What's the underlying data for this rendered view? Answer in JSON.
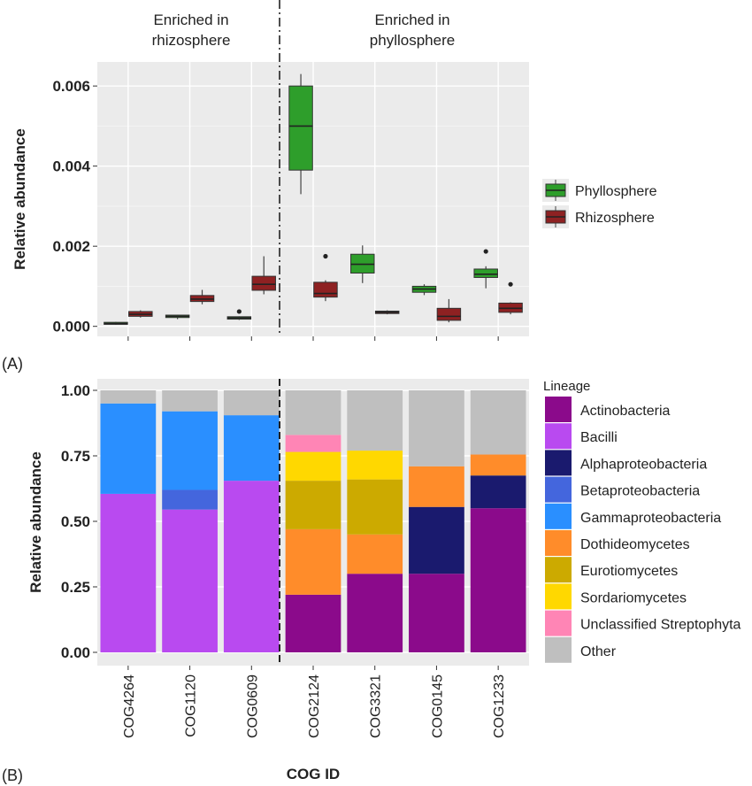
{
  "labels": {
    "panel_a": "(A)",
    "panel_b": "(B)",
    "group_left": [
      "Enriched in",
      "rhizosphere"
    ],
    "group_right": [
      "Enriched in",
      "phyllosphere"
    ]
  },
  "colors": {
    "phyllosphere": "#2e9e2b",
    "rhizosphere": "#8e2122",
    "panel_bg": "#ebebeb",
    "grid": "#ffffff"
  },
  "chart_data": [
    {
      "type": "box",
      "ylabel": "Relative abundance",
      "ylim": [
        -0.00025,
        0.0066
      ],
      "yticks": [
        "0.000",
        "0.002",
        "0.004",
        "0.006"
      ],
      "ytick_values": [
        0,
        0.002,
        0.004,
        0.006
      ],
      "categories": [
        "COG4264",
        "COG1120",
        "COG0609",
        "COG2124",
        "COG3321",
        "COG0145",
        "COG1233"
      ],
      "legend": {
        "position": "right",
        "entries": [
          "Phyllosphere",
          "Rhizosphere"
        ]
      },
      "series": [
        {
          "name": "Phyllosphere",
          "color": "#2e9e2b",
          "boxes": [
            {
              "q1": 5e-05,
              "median": 7e-05,
              "q3": 0.0001,
              "min": 4e-05,
              "max": 0.00011,
              "outliers": []
            },
            {
              "q1": 0.00022,
              "median": 0.00025,
              "q3": 0.00028,
              "min": 0.00018,
              "max": 0.00029,
              "outliers": []
            },
            {
              "q1": 0.00018,
              "median": 0.00021,
              "q3": 0.00024,
              "min": 0.00016,
              "max": 0.00025,
              "outliers": [
                0.00037
              ]
            },
            {
              "q1": 0.0039,
              "median": 0.005,
              "q3": 0.006,
              "min": 0.0033,
              "max": 0.0063,
              "outliers": []
            },
            {
              "q1": 0.00133,
              "median": 0.00155,
              "q3": 0.0018,
              "min": 0.00108,
              "max": 0.00202,
              "outliers": []
            },
            {
              "q1": 0.00085,
              "median": 0.00093,
              "q3": 0.001,
              "min": 0.00078,
              "max": 0.00105,
              "outliers": []
            },
            {
              "q1": 0.00122,
              "median": 0.0013,
              "q3": 0.00143,
              "min": 0.00095,
              "max": 0.0015,
              "outliers": [
                0.00187
              ]
            }
          ]
        },
        {
          "name": "Rhizosphere",
          "color": "#8e2122",
          "boxes": [
            {
              "q1": 0.00025,
              "median": 0.0003,
              "q3": 0.00037,
              "min": 0.00022,
              "max": 0.0004,
              "outliers": []
            },
            {
              "q1": 0.00062,
              "median": 0.00068,
              "q3": 0.00077,
              "min": 0.00055,
              "max": 0.00091,
              "outliers": []
            },
            {
              "q1": 0.0009,
              "median": 0.00105,
              "q3": 0.00125,
              "min": 0.0008,
              "max": 0.00175,
              "outliers": []
            },
            {
              "q1": 0.00073,
              "median": 0.00082,
              "q3": 0.0011,
              "min": 0.00063,
              "max": 0.00115,
              "outliers": [
                0.00175
              ]
            },
            {
              "q1": 0.00032,
              "median": 0.00035,
              "q3": 0.00038,
              "min": 0.0003,
              "max": 0.0004,
              "outliers": []
            },
            {
              "q1": 0.00015,
              "median": 0.00025,
              "q3": 0.00045,
              "min": 0.0001,
              "max": 0.00068,
              "outliers": []
            },
            {
              "q1": 0.00035,
              "median": 0.00045,
              "q3": 0.00058,
              "min": 0.0003,
              "max": 0.0006,
              "outliers": [
                0.00105
              ]
            }
          ]
        }
      ]
    },
    {
      "type": "stacked-bar",
      "ylabel": "Relative abundance",
      "xlabel": "COG ID",
      "ylim": [
        0,
        1.0
      ],
      "yticks": [
        "0.00",
        "0.25",
        "0.50",
        "0.75",
        "1.00"
      ],
      "ytick_values": [
        0,
        0.25,
        0.5,
        0.75,
        1.0
      ],
      "categories": [
        "COG4264",
        "COG1120",
        "COG0609",
        "COG2124",
        "COG3321",
        "COG0145",
        "COG1233"
      ],
      "legend": {
        "title": "Lineage",
        "position": "right"
      },
      "series": [
        {
          "name": "Actinobacteria",
          "color": "#8b0a8b",
          "values": [
            0,
            0,
            0,
            0.22,
            0.3,
            0.3,
            0.55
          ]
        },
        {
          "name": "Bacilli",
          "color": "#b94af0",
          "values": [
            0.605,
            0.545,
            0.655,
            0,
            0,
            0,
            0
          ]
        },
        {
          "name": "Alphaproteobacteria",
          "color": "#1a1a6e",
          "values": [
            0,
            0,
            0,
            0,
            0,
            0.255,
            0.125
          ]
        },
        {
          "name": "Betaproteobacteria",
          "color": "#4466dd",
          "values": [
            0,
            0.075,
            0,
            0,
            0,
            0,
            0
          ]
        },
        {
          "name": "Gammaproteobacteria",
          "color": "#2a8fff",
          "values": [
            0.345,
            0.3,
            0.25,
            0,
            0,
            0,
            0
          ]
        },
        {
          "name": "Dothideomycetes",
          "color": "#ff8c2a",
          "values": [
            0,
            0,
            0,
            0.25,
            0.15,
            0.155,
            0.08
          ]
        },
        {
          "name": "Eurotiomycetes",
          "color": "#ccaa00",
          "values": [
            0,
            0,
            0,
            0.185,
            0.21,
            0,
            0
          ]
        },
        {
          "name": "Sordariomycetes",
          "color": "#ffd800",
          "values": [
            0,
            0,
            0,
            0.11,
            0.11,
            0,
            0
          ]
        },
        {
          "name": "Unclassified Streptophyta",
          "color": "#ff85b5",
          "values": [
            0,
            0,
            0,
            0.065,
            0,
            0,
            0
          ]
        },
        {
          "name": "Other",
          "color": "#bfbfbf",
          "values": [
            0.05,
            0.08,
            0.095,
            0.17,
            0.23,
            0.29,
            0.245
          ]
        }
      ]
    }
  ]
}
